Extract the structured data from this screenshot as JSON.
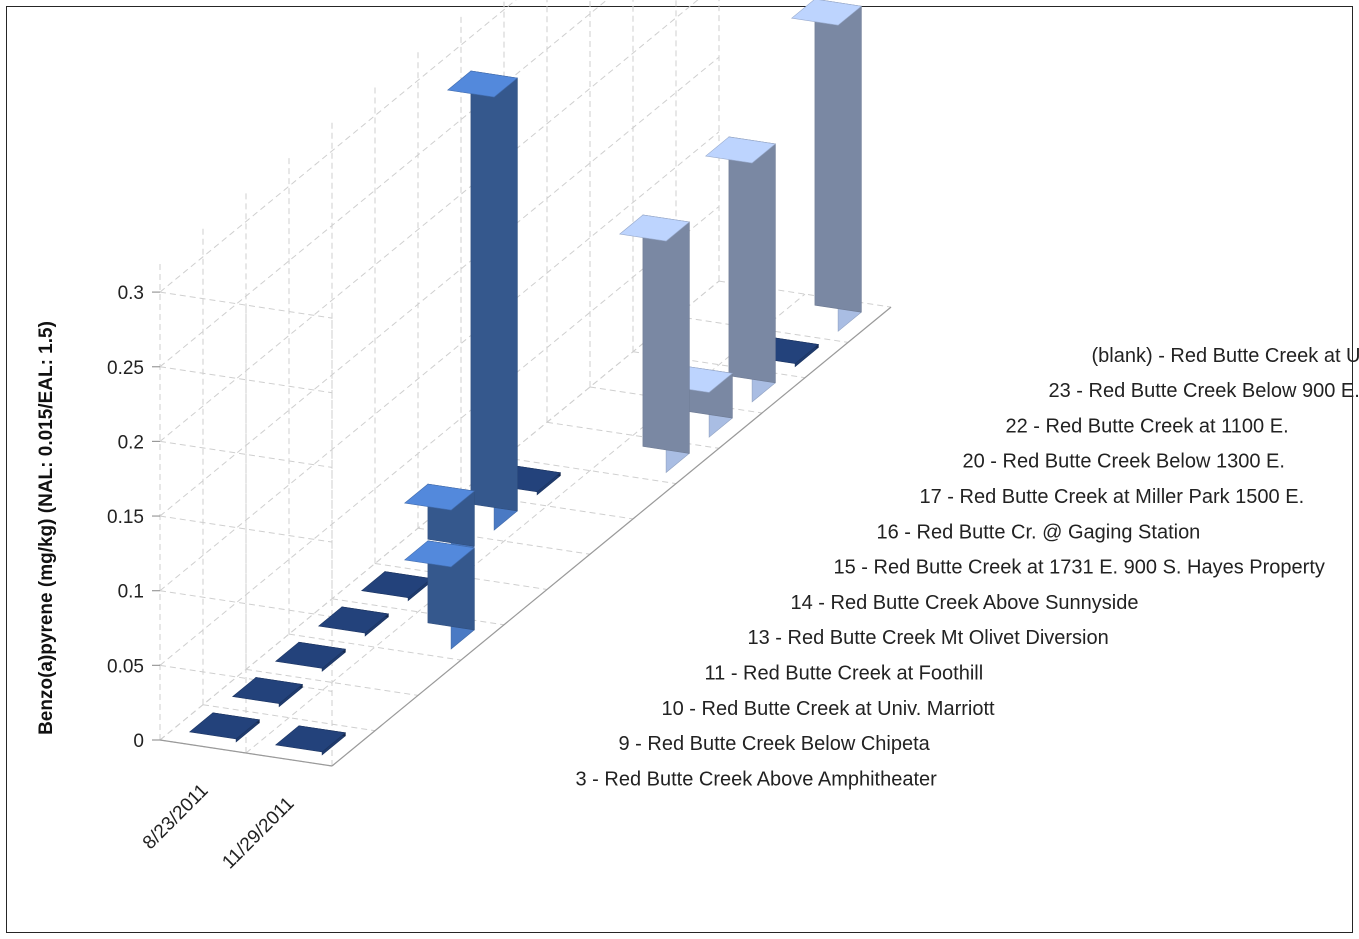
{
  "chart_data": {
    "type": "bar",
    "subtype": "3d-column",
    "title": "",
    "ylabel": "Benzo(a)pyrene (mg/kg) (NAL: 0.015/EAL: 1.5)",
    "ylim": [
      0,
      0.3
    ],
    "yticks": [
      "0",
      "0.05",
      "0.1",
      "0.15",
      "0.2",
      "0.25",
      "0.3"
    ],
    "grid": true,
    "legend": "none",
    "x": [
      "8/23/2011",
      "11/29/2011"
    ],
    "categories": [
      "3 - Red Butte Creek Above Amphitheater",
      "9 - Red Butte Creek Below Chipeta",
      "10 - Red Butte Creek at Univ. Marriott",
      "11 - Red Butte Creek at Foothill",
      "13 - Red Butte Creek Mt Olivet Diversion",
      "14 - Red Butte Creek Above Sunnyside",
      "15 - Red Butte Creek at 1731 E. 900 S. Hayes Property",
      "16 - Red Butte Cr. @ Gaging Station",
      "17 - Red Butte Creek at Miller Park 1500 E.",
      "20 - Red Butte Creek Below 1300 E.",
      "22 - Red Butte Creek at 1100 E.",
      "23 - Red Butte Creek Below 900 E.",
      "(blank) - Red Butte Creek at Underflow Dam"
    ],
    "series": [
      {
        "values": [
          0,
          0,
          0,
          0,
          0,
          0.037,
          0.29,
          0,
          null,
          null,
          null,
          null,
          null
        ]
      },
      {
        "values": [
          0,
          null,
          null,
          0.055,
          null,
          null,
          null,
          null,
          0.155,
          0.03,
          0.16,
          0,
          0.205
        ]
      }
    ],
    "colors": {
      "near_dark": "#1f3b6e",
      "mid_blue": "#4a7ac4",
      "light_blue": "#9db4df",
      "pale_blue": "#a9bde3"
    }
  }
}
